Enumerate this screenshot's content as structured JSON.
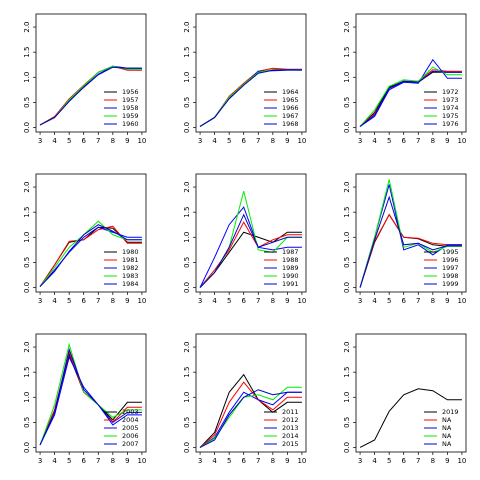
{
  "chart_data": [
    {
      "type": "line",
      "x": [
        3,
        4,
        5,
        6,
        7,
        8,
        9,
        10
      ],
      "xlim": [
        2.72,
        10.28
      ],
      "ylim": [
        -0.09,
        2.26
      ],
      "xticks": [
        3,
        4,
        5,
        6,
        7,
        8,
        9,
        10
      ],
      "yticks": [
        {
          "value": 0,
          "label": "0.0"
        },
        {
          "value": 0.5,
          "label": "0.5"
        },
        {
          "value": 1,
          "label": "1.0"
        },
        {
          "value": 1.5,
          "label": "1.5"
        },
        {
          "value": 2,
          "label": "2.0"
        }
      ],
      "legend": "bottomright",
      "series": [
        {
          "name": "1956",
          "color": "#000000",
          "values": [
            0.05,
            0.2,
            0.55,
            0.82,
            1.1,
            1.22,
            1.18,
            1.18
          ]
        },
        {
          "name": "1957",
          "color": "#ff0000",
          "values": [
            0.05,
            0.22,
            0.57,
            0.84,
            1.1,
            1.22,
            1.14,
            1.14
          ]
        },
        {
          "name": "1958",
          "color": "#0000ff",
          "values": [
            0.05,
            0.2,
            0.53,
            0.8,
            1.06,
            1.22,
            1.18,
            1.18
          ]
        },
        {
          "name": "1959",
          "color": "#00ee00",
          "values": [
            0.05,
            0.2,
            0.55,
            0.83,
            1.1,
            1.22,
            1.16,
            1.16
          ]
        },
        {
          "name": "1960",
          "color": "#0000cd",
          "values": [
            0.05,
            0.2,
            0.52,
            0.8,
            1.05,
            1.2,
            1.18,
            1.18
          ]
        }
      ]
    },
    {
      "type": "line",
      "x": [
        3,
        4,
        5,
        6,
        7,
        8,
        9,
        10
      ],
      "xlim": [
        2.72,
        10.28
      ],
      "ylim": [
        -0.09,
        2.26
      ],
      "xticks": [
        3,
        4,
        5,
        6,
        7,
        8,
        9,
        10
      ],
      "yticks": [
        {
          "value": 0,
          "label": "0.0"
        },
        {
          "value": 0.5,
          "label": "0.5"
        },
        {
          "value": 1,
          "label": "1.0"
        },
        {
          "value": 1.5,
          "label": "1.5"
        },
        {
          "value": 2,
          "label": "2.0"
        }
      ],
      "legend": "bottomright",
      "series": [
        {
          "name": "1964",
          "color": "#000000",
          "values": [
            0.02,
            0.2,
            0.6,
            0.87,
            1.1,
            1.15,
            1.15,
            1.15
          ]
        },
        {
          "name": "1965",
          "color": "#ff0000",
          "values": [
            0.02,
            0.2,
            0.62,
            0.88,
            1.12,
            1.18,
            1.16,
            1.16
          ]
        },
        {
          "name": "1966",
          "color": "#0000ff",
          "values": [
            0.02,
            0.2,
            0.58,
            0.85,
            1.12,
            1.13,
            1.14,
            1.14
          ]
        },
        {
          "name": "1967",
          "color": "#00ee00",
          "values": [
            0.02,
            0.2,
            0.6,
            0.86,
            1.1,
            1.15,
            1.15,
            1.15
          ]
        },
        {
          "name": "1968",
          "color": "#0000cd",
          "values": [
            0.02,
            0.2,
            0.57,
            0.84,
            1.08,
            1.14,
            1.15,
            1.15
          ]
        }
      ]
    },
    {
      "type": "line",
      "x": [
        3,
        4,
        5,
        6,
        7,
        8,
        9,
        10
      ],
      "xlim": [
        2.72,
        10.28
      ],
      "ylim": [
        -0.09,
        2.26
      ],
      "xticks": [
        3,
        4,
        5,
        6,
        7,
        8,
        9,
        10
      ],
      "yticks": [
        {
          "value": 0,
          "label": "0.0"
        },
        {
          "value": 0.5,
          "label": "0.5"
        },
        {
          "value": 1,
          "label": "1.0"
        },
        {
          "value": 1.5,
          "label": "1.5"
        },
        {
          "value": 2,
          "label": "2.0"
        }
      ],
      "legend": "bottomright",
      "series": [
        {
          "name": "1972",
          "color": "#000000",
          "values": [
            0.02,
            0.3,
            0.8,
            0.92,
            0.9,
            1.1,
            1.1,
            1.1
          ]
        },
        {
          "name": "1973",
          "color": "#ff0000",
          "values": [
            0.02,
            0.28,
            0.75,
            0.92,
            0.92,
            1.15,
            1.12,
            1.12
          ]
        },
        {
          "name": "1974",
          "color": "#0000ff",
          "values": [
            0.02,
            0.22,
            0.75,
            0.9,
            0.88,
            1.35,
            0.98,
            0.98
          ]
        },
        {
          "name": "1975",
          "color": "#00ee00",
          "values": [
            0.02,
            0.35,
            0.82,
            0.95,
            0.92,
            1.2,
            1.05,
            1.05
          ]
        },
        {
          "name": "1976",
          "color": "#0000cd",
          "values": [
            0.02,
            0.25,
            0.78,
            0.92,
            0.9,
            1.12,
            1.1,
            1.1
          ]
        }
      ]
    },
    {
      "type": "line",
      "x": [
        3,
        4,
        5,
        6,
        7,
        8,
        9,
        10
      ],
      "xlim": [
        2.72,
        10.28
      ],
      "ylim": [
        -0.09,
        2.26
      ],
      "xticks": [
        3,
        4,
        5,
        6,
        7,
        8,
        9,
        10
      ],
      "yticks": [
        {
          "value": 0,
          "label": "0.0"
        },
        {
          "value": 0.5,
          "label": "0.5"
        },
        {
          "value": 1,
          "label": "1.0"
        },
        {
          "value": 1.5,
          "label": "1.5"
        },
        {
          "value": 2,
          "label": "2.0"
        }
      ],
      "legend": "bottomright",
      "series": [
        {
          "name": "1980",
          "color": "#000000",
          "values": [
            0.02,
            0.45,
            0.9,
            0.95,
            1.2,
            1.18,
            0.9,
            0.9
          ]
        },
        {
          "name": "1981",
          "color": "#ff0000",
          "values": [
            0.02,
            0.45,
            0.92,
            0.95,
            1.15,
            1.22,
            0.88,
            0.88
          ]
        },
        {
          "name": "1982",
          "color": "#0000ff",
          "values": [
            0.02,
            0.35,
            0.7,
            1.0,
            1.2,
            1.1,
            1.0,
            1.0
          ]
        },
        {
          "name": "1983",
          "color": "#00ee00",
          "values": [
            0.02,
            0.4,
            0.8,
            1.05,
            1.32,
            1.05,
            0.95,
            0.95
          ]
        },
        {
          "name": "1984",
          "color": "#0000cd",
          "values": [
            0.02,
            0.32,
            0.72,
            1.05,
            1.25,
            1.12,
            0.95,
            0.95
          ]
        }
      ]
    },
    {
      "type": "line",
      "x": [
        3,
        4,
        5,
        6,
        7,
        8,
        9,
        10
      ],
      "xlim": [
        2.72,
        10.28
      ],
      "ylim": [
        -0.09,
        2.26
      ],
      "xticks": [
        3,
        4,
        5,
        6,
        7,
        8,
        9,
        10
      ],
      "yticks": [
        {
          "value": 0,
          "label": "0.0"
        },
        {
          "value": 0.5,
          "label": "0.5"
        },
        {
          "value": 1,
          "label": "1.0"
        },
        {
          "value": 1.5,
          "label": "1.5"
        },
        {
          "value": 2,
          "label": "2.0"
        }
      ],
      "legend": "bottomright",
      "series": [
        {
          "name": "1987",
          "color": "#000000",
          "values": [
            0,
            0.3,
            0.7,
            1.1,
            1.0,
            0.9,
            1.1,
            1.1
          ]
        },
        {
          "name": "1988",
          "color": "#ff0000",
          "values": [
            0,
            0.35,
            0.75,
            1.3,
            0.8,
            0.95,
            1.05,
            1.05
          ]
        },
        {
          "name": "1989",
          "color": "#0000ff",
          "values": [
            0,
            0.6,
            1.25,
            1.6,
            0.8,
            0.75,
            0.8,
            0.8
          ]
        },
        {
          "name": "1990",
          "color": "#00ee00",
          "values": [
            0,
            0.3,
            0.8,
            1.92,
            0.75,
            0.7,
            1.0,
            1.0
          ]
        },
        {
          "name": "1991",
          "color": "#0000cd",
          "values": [
            0,
            0.3,
            0.8,
            1.45,
            0.8,
            0.9,
            1.0,
            1.0
          ]
        }
      ]
    },
    {
      "type": "line",
      "x": [
        3,
        4,
        5,
        6,
        7,
        8,
        9,
        10
      ],
      "xlim": [
        2.72,
        10.28
      ],
      "ylim": [
        -0.09,
        2.26
      ],
      "xticks": [
        3,
        4,
        5,
        6,
        7,
        8,
        9,
        10
      ],
      "yticks": [
        {
          "value": 0,
          "label": "0.0"
        },
        {
          "value": 0.5,
          "label": "0.5"
        },
        {
          "value": 1,
          "label": "1.0"
        },
        {
          "value": 1.5,
          "label": "1.5"
        },
        {
          "value": 2,
          "label": "2.0"
        }
      ],
      "legend": "bottomright",
      "series": [
        {
          "name": "1995",
          "color": "#000000",
          "values": [
            0,
            0.9,
            1.45,
            1.0,
            0.97,
            0.85,
            0.82,
            0.82
          ]
        },
        {
          "name": "1996",
          "color": "#ff0000",
          "values": [
            0,
            0.92,
            1.45,
            1.0,
            0.98,
            0.88,
            0.85,
            0.85
          ]
        },
        {
          "name": "1997",
          "color": "#0000ff",
          "values": [
            0,
            1.0,
            2.05,
            0.75,
            0.85,
            0.65,
            0.85,
            0.85
          ]
        },
        {
          "name": "1998",
          "color": "#00ee00",
          "values": [
            0,
            1.0,
            2.15,
            0.8,
            0.88,
            0.7,
            0.82,
            0.82
          ]
        },
        {
          "name": "1999",
          "color": "#0000cd",
          "values": [
            0,
            0.95,
            1.8,
            0.85,
            0.88,
            0.75,
            0.83,
            0.83
          ]
        }
      ]
    },
    {
      "type": "line",
      "x": [
        3,
        4,
        5,
        6,
        7,
        8,
        9,
        10
      ],
      "xlim": [
        2.72,
        10.28
      ],
      "ylim": [
        -0.09,
        2.26
      ],
      "xticks": [
        3,
        4,
        5,
        6,
        7,
        8,
        9,
        10
      ],
      "yticks": [
        {
          "value": 0,
          "label": "0.0"
        },
        {
          "value": 0.5,
          "label": "0.5"
        },
        {
          "value": 1,
          "label": "1.0"
        },
        {
          "value": 1.5,
          "label": "1.5"
        },
        {
          "value": 2,
          "label": "2.0"
        }
      ],
      "legend": "bottomright",
      "series": [
        {
          "name": "2003",
          "color": "#000000",
          "values": [
            0.05,
            0.75,
            1.85,
            1.1,
            0.85,
            0.55,
            0.9,
            0.9
          ]
        },
        {
          "name": "2004",
          "color": "#ff0000",
          "values": [
            0.05,
            0.75,
            1.9,
            1.1,
            0.85,
            0.5,
            0.8,
            0.8
          ]
        },
        {
          "name": "2005",
          "color": "#0000ff",
          "values": [
            0.05,
            0.65,
            1.8,
            1.2,
            0.85,
            0.45,
            0.65,
            0.65
          ]
        },
        {
          "name": "2006",
          "color": "#00ee00",
          "values": [
            0.05,
            0.85,
            2.05,
            1.1,
            0.85,
            0.6,
            0.75,
            0.75
          ]
        },
        {
          "name": "2007",
          "color": "#0000cd",
          "values": [
            0.05,
            0.7,
            1.95,
            1.15,
            0.85,
            0.5,
            0.7,
            0.7
          ]
        }
      ]
    },
    {
      "type": "line",
      "x": [
        3,
        4,
        5,
        6,
        7,
        8,
        9,
        10
      ],
      "xlim": [
        2.72,
        10.28
      ],
      "ylim": [
        -0.09,
        2.26
      ],
      "xticks": [
        3,
        4,
        5,
        6,
        7,
        8,
        9,
        10
      ],
      "yticks": [
        {
          "value": 0,
          "label": "0.0"
        },
        {
          "value": 0.5,
          "label": "0.5"
        },
        {
          "value": 1,
          "label": "1.0"
        },
        {
          "value": 1.5,
          "label": "1.5"
        },
        {
          "value": 2,
          "label": "2.0"
        }
      ],
      "legend": "bottomright",
      "series": [
        {
          "name": "2011",
          "color": "#000000",
          "values": [
            0,
            0.3,
            1.1,
            1.45,
            0.95,
            0.7,
            0.9,
            0.9
          ]
        },
        {
          "name": "2012",
          "color": "#ff0000",
          "values": [
            0,
            0.25,
            0.9,
            1.3,
            0.95,
            0.75,
            1.0,
            1.0
          ]
        },
        {
          "name": "2013",
          "color": "#0000ff",
          "values": [
            0,
            0.2,
            0.7,
            1.1,
            0.95,
            0.85,
            1.1,
            1.1
          ]
        },
        {
          "name": "2014",
          "color": "#00ee00",
          "values": [
            0,
            0.18,
            0.6,
            1.0,
            1.05,
            0.95,
            1.2,
            1.2
          ]
        },
        {
          "name": "2015",
          "color": "#0000cd",
          "values": [
            0,
            0.15,
            0.65,
            1.0,
            1.15,
            1.05,
            1.1,
            1.1
          ]
        }
      ]
    },
    {
      "type": "line",
      "x": [
        3,
        4,
        5,
        6,
        7,
        8,
        9,
        10
      ],
      "xlim": [
        2.72,
        10.28
      ],
      "ylim": [
        -0.09,
        2.26
      ],
      "xticks": [
        3,
        4,
        5,
        6,
        7,
        8,
        9,
        10
      ],
      "yticks": [
        {
          "value": 0,
          "label": "0.0"
        },
        {
          "value": 0.5,
          "label": "0.5"
        },
        {
          "value": 1,
          "label": "1.0"
        },
        {
          "value": 1.5,
          "label": "1.5"
        },
        {
          "value": 2,
          "label": "2.0"
        }
      ],
      "legend": "bottomright",
      "series": [
        {
          "name": "2019",
          "color": "#000000",
          "values": [
            0,
            0.15,
            0.72,
            1.05,
            1.17,
            1.13,
            0.95,
            0.95
          ]
        },
        {
          "name": "NA",
          "color": "#ff0000",
          "values": [
            null,
            null,
            null,
            null,
            null,
            null,
            null,
            null
          ]
        },
        {
          "name": "NA",
          "color": "#0000ff",
          "values": [
            null,
            null,
            null,
            null,
            null,
            null,
            null,
            null
          ]
        },
        {
          "name": "NA",
          "color": "#00ee00",
          "values": [
            null,
            null,
            null,
            null,
            null,
            null,
            null,
            null
          ]
        },
        {
          "name": "NA",
          "color": "#0000cd",
          "values": [
            null,
            null,
            null,
            null,
            null,
            null,
            null,
            null
          ]
        }
      ]
    }
  ]
}
